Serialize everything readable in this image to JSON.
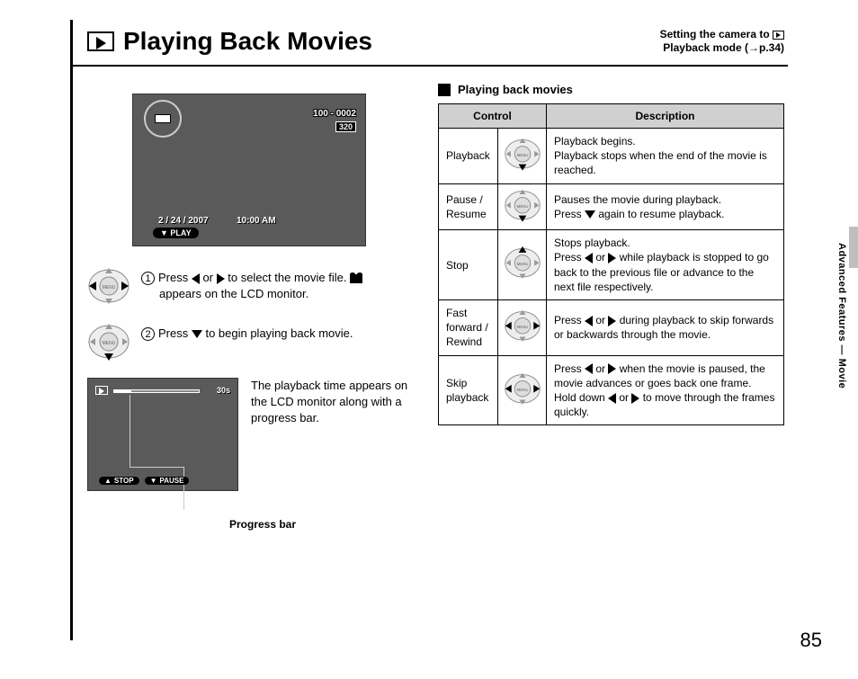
{
  "page": {
    "title": "Playing Back Movies",
    "subtitle_l1": "Setting the camera to ",
    "subtitle_l2": "Playback mode (→p.34)",
    "page_number": "85",
    "side_label": "Advanced Features — Movie",
    "colors": {
      "lcd_bg": "#5a5a5a",
      "table_header_bg": "#d0d0d0",
      "border": "#000000",
      "side_tab": "#bfbfbf"
    }
  },
  "lcd1": {
    "counter": "100 - 0002",
    "quality": "320",
    "date": "2 / 24 / 2007",
    "time": "10:00 AM",
    "play_label": "PLAY"
  },
  "steps": {
    "s1": {
      "num": "1",
      "text_a": "Press ",
      "text_b": " or ",
      "text_c": " to select the movie file. ",
      "text_d": " appears on the LCD monitor."
    },
    "s2": {
      "num": "2",
      "text_a": "Press ",
      "text_b": " to begin playing back movie."
    }
  },
  "lcd2": {
    "duration": "30s",
    "stop": "STOP",
    "pause": "PAUSE",
    "caption": "The playback time appears on the LCD monitor along with a progress bar.",
    "progress_label": "Progress bar"
  },
  "table": {
    "section_title": "Playing back movies",
    "headers": {
      "c1": "Control",
      "c2": "Description"
    },
    "col_widths": {
      "name": 66,
      "icon": 54
    },
    "rows": [
      {
        "name": "Playback",
        "dir": "down",
        "desc_a": "Playback begins.",
        "desc_b": "Playback stops when the end of the movie is reached."
      },
      {
        "name": "Pause / Resume",
        "dir": "down",
        "desc_a": "Pauses the movie during playback.",
        "desc_b": "Press ▼ again to resume playback."
      },
      {
        "name": "Stop",
        "dir": "up",
        "desc_a": "Stops playback.",
        "desc_b": "Press ◀ or ▶ while playback is stopped to go back to the previous file or advance to the next file respectively."
      },
      {
        "name": "Fast forward / Rewind",
        "dir": "lr",
        "desc_a": "Press ◀ or ▶ during playback to skip forwards or backwards through the movie.",
        "desc_b": ""
      },
      {
        "name": "Skip playback",
        "dir": "lr",
        "desc_a": "Press ◀ or ▶ when the movie is paused, the movie advances or goes back one frame.",
        "desc_b": "Hold down ◀ or ▶ to move through the frames quickly."
      }
    ]
  }
}
